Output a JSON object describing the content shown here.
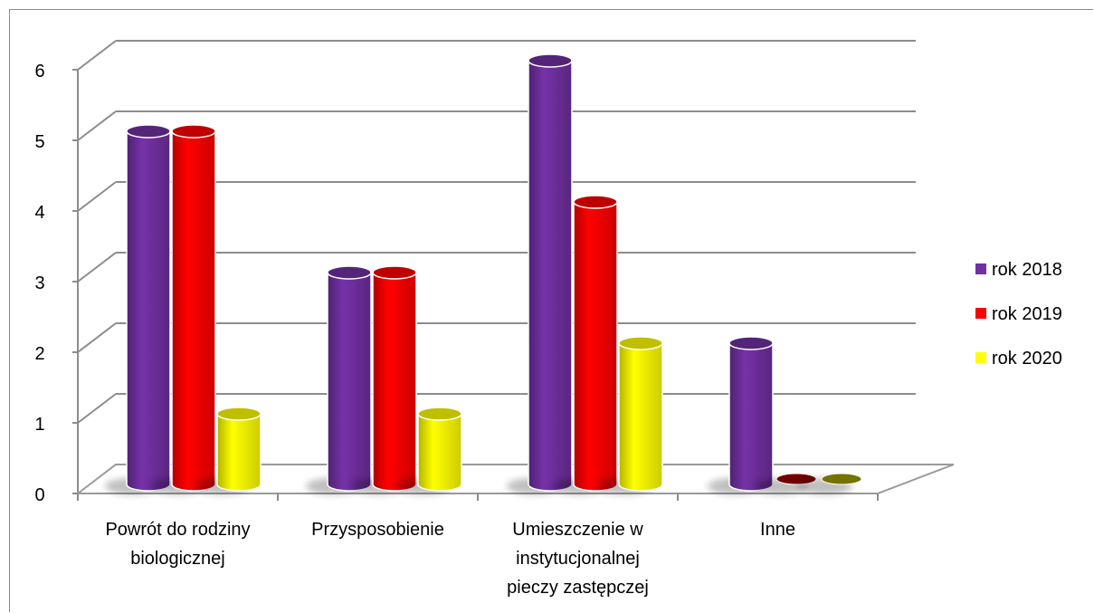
{
  "chart_data": {
    "type": "bar",
    "categories": [
      [
        "Powrót do rodziny",
        "biologicznej"
      ],
      [
        "Przysposobienie"
      ],
      [
        "Umieszczenie w",
        "instytucjonalnej",
        "pieczy zastępczej"
      ],
      [
        "Inne"
      ]
    ],
    "series": [
      {
        "name": "rok 2018",
        "values": [
          5,
          3,
          6,
          2
        ],
        "color": "#7030A0"
      },
      {
        "name": "rok 2019",
        "values": [
          5,
          3,
          4,
          0
        ],
        "color": "#FF0000"
      },
      {
        "name": "rok 2020",
        "values": [
          1,
          1,
          2,
          0
        ],
        "color": "#FFFF00"
      }
    ],
    "y_ticks": [
      "0",
      "1",
      "2",
      "3",
      "4",
      "5",
      "6"
    ],
    "ylim": [
      0,
      6
    ],
    "grid": true,
    "legend_position": "right",
    "style": "3d-cylinder"
  }
}
